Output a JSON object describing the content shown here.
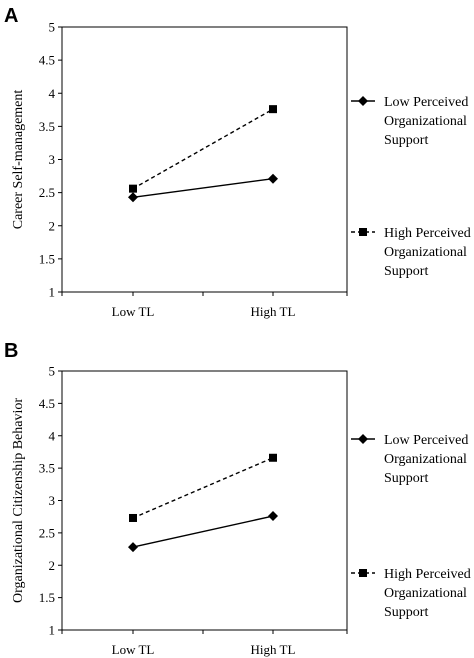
{
  "chart_data": [
    {
      "panel_label": "A",
      "type": "line",
      "categories": [
        "Low TL",
        "High TL"
      ],
      "ylabel": "Career Self-management",
      "ylim": [
        1,
        5
      ],
      "yticks": [
        "1",
        "1.5",
        "2",
        "2.5",
        "3",
        "3.5",
        "4",
        "4.5",
        "5"
      ],
      "grid": false,
      "legend_position": "right",
      "series": [
        {
          "name_lines": [
            "Low Perceived",
            "Organizational",
            "Support"
          ],
          "values": [
            2.43,
            2.71
          ],
          "line_style": "solid",
          "marker": "diamond",
          "color": "#000000"
        },
        {
          "name_lines": [
            "High Perceived",
            "Organizational",
            "Support"
          ],
          "values": [
            2.56,
            3.76
          ],
          "line_style": "dashed",
          "marker": "square",
          "color": "#000000"
        }
      ]
    },
    {
      "panel_label": "B",
      "type": "line",
      "categories": [
        "Low TL",
        "High TL"
      ],
      "ylabel": "Organizational Citizenship Behavior",
      "ylim": [
        1,
        5
      ],
      "yticks": [
        "1",
        "1.5",
        "2",
        "2.5",
        "3",
        "3.5",
        "4",
        "4.5",
        "5"
      ],
      "grid": false,
      "legend_position": "right",
      "series": [
        {
          "name_lines": [
            "Low Perceived",
            "Organizational",
            "Support"
          ],
          "values": [
            2.28,
            2.76
          ],
          "line_style": "solid",
          "marker": "diamond",
          "color": "#000000"
        },
        {
          "name_lines": [
            "High Perceived",
            "Organizational",
            "Support"
          ],
          "values": [
            2.73,
            3.66
          ],
          "line_style": "dashed",
          "marker": "square",
          "color": "#000000"
        }
      ]
    }
  ]
}
